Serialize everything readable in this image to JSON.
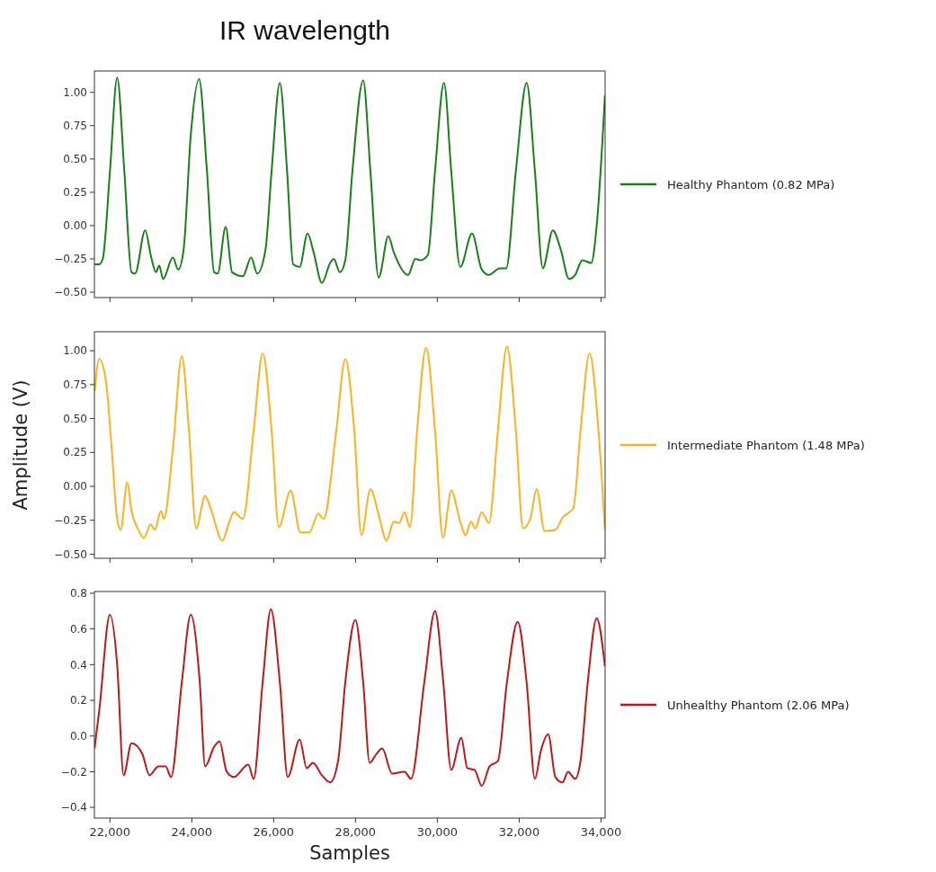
{
  "chart_data": [
    {
      "type": "line",
      "title": "IR wavelength",
      "xlim": [
        21620,
        34100
      ],
      "ylim": [
        -0.54,
        1.16
      ],
      "tick_labels": "y",
      "legend": "right",
      "xticks": [
        {
          "value": 22000,
          "label": null
        },
        {
          "value": 24000,
          "label": null
        },
        {
          "value": 26000,
          "label": null
        },
        {
          "value": 28000,
          "label": null
        },
        {
          "value": 30000,
          "label": null
        },
        {
          "value": 32000,
          "label": null
        },
        {
          "value": 34000,
          "label": null
        }
      ],
      "yticks": [
        {
          "value": -0.5,
          "label": "−0.50"
        },
        {
          "value": -0.25,
          "label": "−0.25"
        },
        {
          "value": 0,
          "label": "0.00"
        },
        {
          "value": 0.25,
          "label": "0.25"
        },
        {
          "value": 0.5,
          "label": "0.50"
        },
        {
          "value": 0.75,
          "label": "0.75"
        },
        {
          "value": 1,
          "label": "1.00"
        }
      ],
      "series": [
        {
          "name": "Healthy Phantom (0.82 MPa)",
          "color": "#1a7f1a",
          "x": [
            21623,
            21737,
            21824,
            22000,
            22176,
            22351,
            22527,
            22615,
            22860,
            23009,
            23124,
            23203,
            23299,
            23536,
            23668,
            23800,
            23975,
            24177,
            24370,
            24546,
            24633,
            24827,
            24985,
            25248,
            25450,
            25599,
            25801,
            25950,
            26152,
            26328,
            26477,
            26635,
            26828,
            26977,
            27179,
            27381,
            27469,
            27618,
            27750,
            27925,
            28188,
            28364,
            28566,
            28803,
            28935,
            29286,
            29462,
            29593,
            29769,
            29944,
            30163,
            30339,
            30559,
            30848,
            31085,
            31261,
            31524,
            31682,
            31919,
            32182,
            32384,
            32577,
            32823,
            33016,
            33218,
            33367,
            33543,
            33762,
            33894,
            34096
          ],
          "values": [
            -0.29,
            -0.29,
            -0.25,
            0.41,
            1.11,
            0.41,
            -0.35,
            -0.36,
            -0.035,
            -0.24,
            -0.35,
            -0.3,
            -0.4,
            -0.24,
            -0.33,
            -0.18,
            0.68,
            1.1,
            0.41,
            -0.35,
            -0.36,
            -0.01,
            -0.35,
            -0.38,
            -0.24,
            -0.36,
            -0.18,
            0.41,
            1.07,
            0.41,
            -0.29,
            -0.31,
            -0.06,
            -0.2,
            -0.43,
            -0.28,
            -0.25,
            -0.35,
            -0.26,
            0.41,
            1.09,
            0.41,
            -0.39,
            -0.08,
            -0.2,
            -0.37,
            -0.25,
            -0.26,
            -0.22,
            0.41,
            1.07,
            0.41,
            -0.31,
            -0.06,
            -0.33,
            -0.37,
            -0.32,
            -0.32,
            0.41,
            1.07,
            0.41,
            -0.32,
            -0.035,
            -0.18,
            -0.4,
            -0.37,
            -0.26,
            -0.28,
            0,
            0.98
          ]
        }
      ]
    },
    {
      "type": "line",
      "ylabel": "Amplitude (V)",
      "xlim": [
        21620,
        34100
      ],
      "ylim": [
        -0.53,
        1.14
      ],
      "tick_labels": "y",
      "legend": "right",
      "xticks": [
        {
          "value": 22000,
          "label": null
        },
        {
          "value": 24000,
          "label": null
        },
        {
          "value": 26000,
          "label": null
        },
        {
          "value": 28000,
          "label": null
        },
        {
          "value": 30000,
          "label": null
        },
        {
          "value": 32000,
          "label": null
        },
        {
          "value": 34000,
          "label": null
        }
      ],
      "yticks": [
        {
          "value": -0.5,
          "label": "−0.50"
        },
        {
          "value": -0.25,
          "label": "−0.25"
        },
        {
          "value": 0,
          "label": "0.00"
        },
        {
          "value": 0.25,
          "label": "0.25"
        },
        {
          "value": 0.5,
          "label": "0.50"
        },
        {
          "value": 0.75,
          "label": "0.75"
        },
        {
          "value": 1,
          "label": "1.00"
        }
      ],
      "series": [
        {
          "name": "Intermediate Phantom (1.48 MPa)",
          "color": "#ffb020",
          "x": [
            21625,
            21737,
            21912,
            22044,
            22176,
            22263,
            22421,
            22527,
            22676,
            22834,
            22992,
            23097,
            23247,
            23317,
            23536,
            23756,
            23931,
            24107,
            24326,
            24458,
            24748,
            24897,
            25028,
            25248,
            25511,
            25731,
            25950,
            26126,
            26416,
            26652,
            26872,
            27091,
            27223,
            27530,
            27750,
            27970,
            28145,
            28364,
            28584,
            28759,
            28935,
            29066,
            29198,
            29330,
            29505,
            29725,
            29944,
            30137,
            30339,
            30559,
            30690,
            30822,
            30927,
            31085,
            31261,
            31480,
            31700,
            31919,
            32095,
            32270,
            32428,
            32621,
            32884,
            33060,
            33323,
            33499,
            33719,
            33938,
            34096
          ],
          "values": [
            0.7,
            0.94,
            0.75,
            0.27,
            -0.24,
            -0.32,
            0.03,
            -0.18,
            -0.31,
            -0.38,
            -0.28,
            -0.32,
            -0.18,
            -0.24,
            0.27,
            0.96,
            0.41,
            -0.31,
            -0.07,
            -0.16,
            -0.4,
            -0.28,
            -0.19,
            -0.24,
            0.41,
            0.98,
            0.41,
            -0.3,
            -0.03,
            -0.34,
            -0.34,
            -0.2,
            -0.24,
            0.41,
            0.94,
            0.41,
            -0.36,
            -0.02,
            -0.23,
            -0.4,
            -0.26,
            -0.27,
            -0.19,
            -0.3,
            0.41,
            1.02,
            0.41,
            -0.38,
            -0.03,
            -0.26,
            -0.36,
            -0.26,
            -0.31,
            -0.19,
            -0.27,
            0.41,
            1.03,
            0.41,
            -0.31,
            -0.24,
            -0.02,
            -0.33,
            -0.32,
            -0.23,
            -0.16,
            0.41,
            0.98,
            0.41,
            -0.32
          ]
        }
      ]
    },
    {
      "type": "line",
      "xlabel": "Samples",
      "xlim": [
        21620,
        34100
      ],
      "ylim": [
        -0.46,
        0.81
      ],
      "legend": "right",
      "xticks": [
        {
          "value": 22000,
          "label": "22,000"
        },
        {
          "value": 24000,
          "label": "24,000"
        },
        {
          "value": 26000,
          "label": "26,000"
        },
        {
          "value": 28000,
          "label": "28,000"
        },
        {
          "value": 30000,
          "label": "30,000"
        },
        {
          "value": 32000,
          "label": "32,000"
        },
        {
          "value": 34000,
          "label": "34,000"
        }
      ],
      "yticks": [
        {
          "value": -0.4,
          "label": "−0.4"
        },
        {
          "value": -0.2,
          "label": "−0.2"
        },
        {
          "value": 0,
          "label": "0.0"
        },
        {
          "value": 0.2,
          "label": "0.2"
        },
        {
          "value": 0.4,
          "label": "0.4"
        },
        {
          "value": 0.6,
          "label": "0.6"
        },
        {
          "value": 0.8,
          "label": "0.8"
        }
      ],
      "series": [
        {
          "name": "Unhealthy Phantom (2.06 MPa)",
          "color": "#c0171a",
          "x": [
            21623,
            21737,
            22000,
            22176,
            22334,
            22527,
            22790,
            22966,
            23185,
            23361,
            23492,
            23756,
            23975,
            24195,
            24326,
            24546,
            24677,
            24853,
            25028,
            25380,
            25511,
            25731,
            25933,
            26152,
            26345,
            26635,
            26810,
            26960,
            27179,
            27381,
            27574,
            27750,
            27996,
            28188,
            28346,
            28513,
            28654,
            28891,
            29198,
            29356,
            29681,
            29944,
            30146,
            30339,
            30585,
            30734,
            30910,
            31085,
            31278,
            31480,
            31700,
            31963,
            32182,
            32384,
            32533,
            32709,
            32884,
            33060,
            33192,
            33367,
            33499,
            33675,
            33894,
            34096
          ],
          "values": [
            -0.07,
            0.14,
            0.68,
            0.4,
            -0.22,
            -0.04,
            -0.1,
            -0.22,
            -0.17,
            -0.17,
            -0.23,
            0.3,
            0.68,
            0.3,
            -0.17,
            -0.06,
            -0.03,
            -0.2,
            -0.23,
            -0.16,
            -0.24,
            0.3,
            0.71,
            0.3,
            -0.23,
            -0.02,
            -0.18,
            -0.15,
            -0.22,
            -0.26,
            -0.14,
            0.3,
            0.65,
            0.3,
            -0.15,
            -0.1,
            -0.07,
            -0.21,
            -0.2,
            -0.24,
            0.3,
            0.7,
            0.3,
            -0.19,
            -0.01,
            -0.18,
            -0.19,
            -0.28,
            -0.17,
            -0.14,
            0.3,
            0.64,
            0.3,
            -0.24,
            -0.08,
            0.01,
            -0.23,
            -0.26,
            -0.2,
            -0.24,
            -0.14,
            0.3,
            0.66,
            0.39
          ]
        }
      ]
    }
  ]
}
